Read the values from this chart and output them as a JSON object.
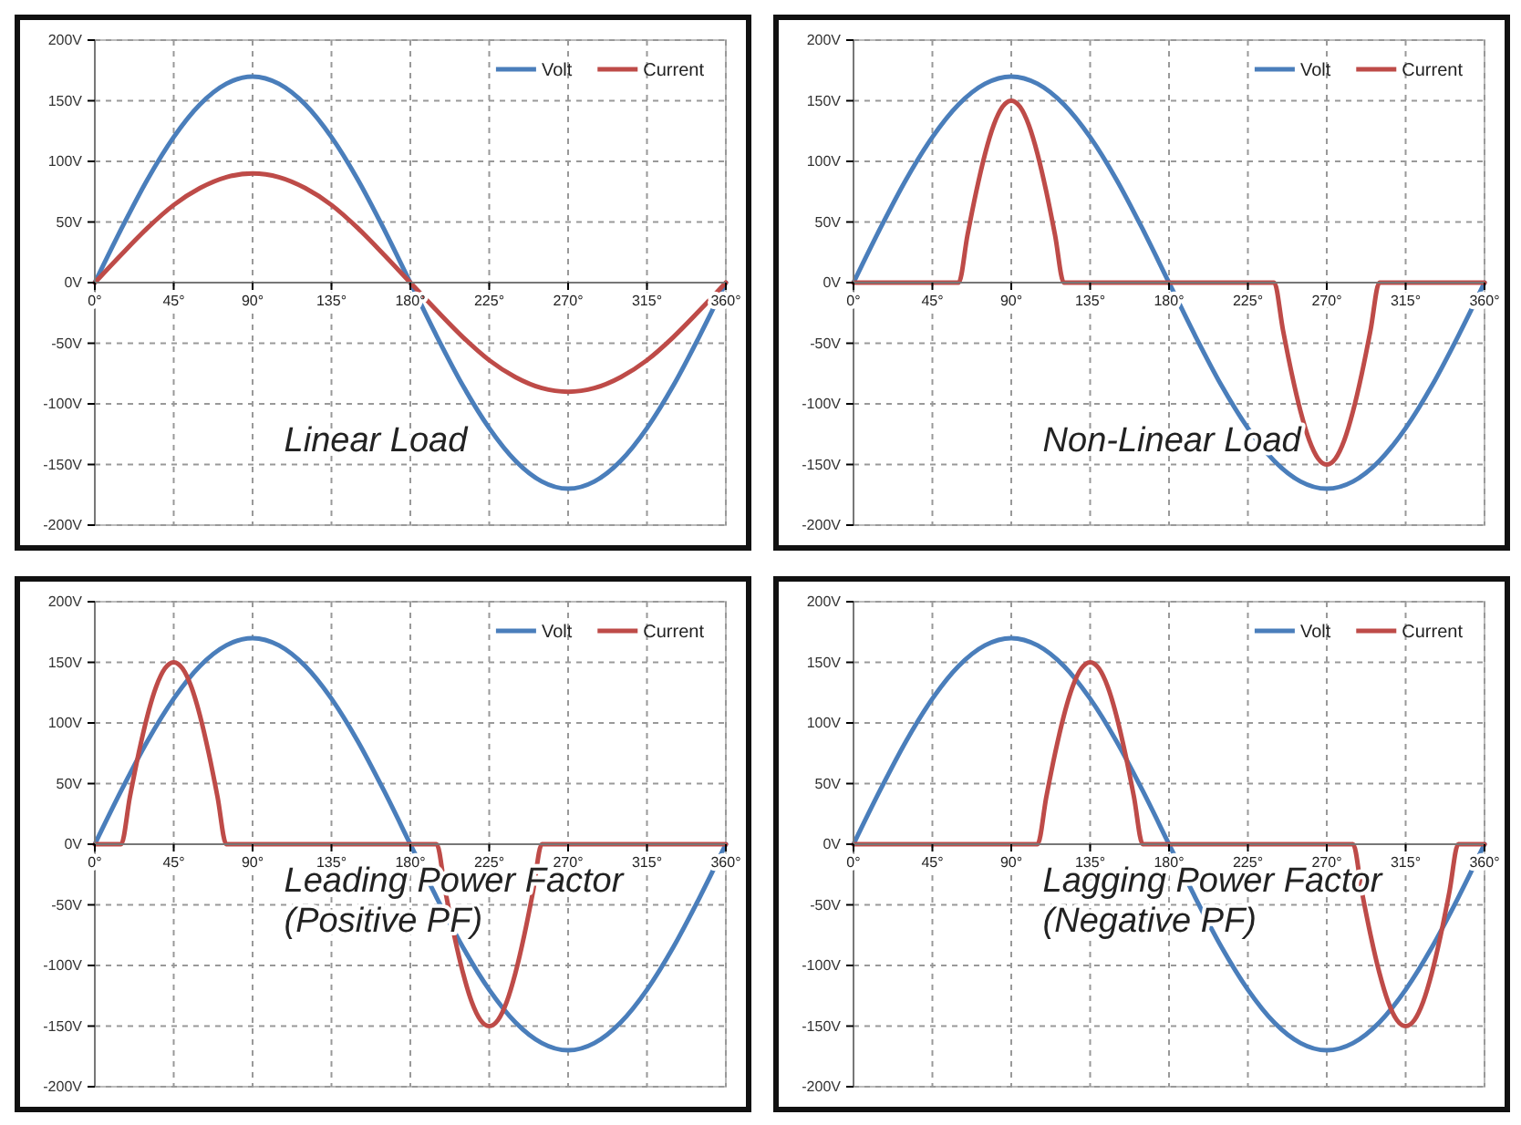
{
  "chart_data": [
    {
      "type": "line",
      "xlim": [
        0,
        360
      ],
      "ylim": [
        -200,
        200
      ],
      "xticks": [
        {
          "value": 0,
          "label": "0°"
        },
        {
          "value": 45,
          "label": "45°"
        },
        {
          "value": 90,
          "label": "90°"
        },
        {
          "value": 135,
          "label": "135°"
        },
        {
          "value": 180,
          "label": "180°"
        },
        {
          "value": 225,
          "label": "225°"
        },
        {
          "value": 270,
          "label": "270°"
        },
        {
          "value": 315,
          "label": "315°"
        },
        {
          "value": 360,
          "label": "360°"
        }
      ],
      "yticks": [
        {
          "value": 200,
          "label": "200V"
        },
        {
          "value": 150,
          "label": "150V"
        },
        {
          "value": 100,
          "label": "100V"
        },
        {
          "value": 50,
          "label": "50V"
        },
        {
          "value": 0,
          "label": "0V"
        },
        {
          "value": -50,
          "label": "-50V"
        },
        {
          "value": -100,
          "label": "-100V"
        },
        {
          "value": -150,
          "label": "-150V"
        },
        {
          "value": -200,
          "label": "-200V"
        }
      ],
      "grid": true,
      "legend": "top right",
      "line_style": "solid",
      "marker": "none",
      "annotations": [
        "Linear Load"
      ],
      "series": [
        {
          "name": "Volt",
          "color": "#4a7ebb",
          "x": [
            0,
            15,
            30,
            45,
            60,
            75,
            90,
            105,
            120,
            135,
            150,
            165,
            180,
            195,
            210,
            225,
            240,
            255,
            270,
            285,
            300,
            315,
            330,
            345,
            360
          ],
          "values": [
            0,
            44,
            85,
            120,
            147,
            164,
            170,
            164,
            147,
            120,
            85,
            44,
            0,
            -44,
            -85,
            -120,
            -147,
            -164,
            -170,
            -164,
            -147,
            -120,
            -85,
            -44,
            0
          ]
        },
        {
          "name": "Current",
          "color": "#be4b48",
          "x": [
            0,
            15,
            30,
            45,
            60,
            75,
            90,
            105,
            120,
            135,
            150,
            165,
            180,
            195,
            210,
            225,
            240,
            255,
            270,
            285,
            300,
            315,
            330,
            345,
            360
          ],
          "values": [
            0,
            23,
            45,
            64,
            78,
            87,
            90,
            87,
            78,
            64,
            45,
            23,
            0,
            -23,
            -45,
            -64,
            -78,
            -87,
            -90,
            -87,
            -78,
            -64,
            -45,
            -23,
            0
          ]
        }
      ]
    },
    {
      "type": "line",
      "xlim": [
        0,
        360
      ],
      "ylim": [
        -200,
        200
      ],
      "xticks": [
        {
          "value": 0,
          "label": "0°"
        },
        {
          "value": 45,
          "label": "45°"
        },
        {
          "value": 90,
          "label": "90°"
        },
        {
          "value": 135,
          "label": "135°"
        },
        {
          "value": 180,
          "label": "180°"
        },
        {
          "value": 225,
          "label": "225°"
        },
        {
          "value": 270,
          "label": "270°"
        },
        {
          "value": 315,
          "label": "315°"
        },
        {
          "value": 360,
          "label": "360°"
        }
      ],
      "yticks": [
        {
          "value": 200,
          "label": "200V"
        },
        {
          "value": 150,
          "label": "150V"
        },
        {
          "value": 100,
          "label": "100V"
        },
        {
          "value": 50,
          "label": "50V"
        },
        {
          "value": 0,
          "label": "0V"
        },
        {
          "value": -50,
          "label": "-50V"
        },
        {
          "value": -100,
          "label": "-100V"
        },
        {
          "value": -150,
          "label": "-150V"
        },
        {
          "value": -200,
          "label": "-200V"
        }
      ],
      "grid": true,
      "legend": "top right",
      "line_style": "solid",
      "marker": "none",
      "annotations": [
        "Non-Linear Load"
      ],
      "series": [
        {
          "name": "Volt",
          "color": "#4a7ebb",
          "x": [
            0,
            15,
            30,
            45,
            60,
            75,
            90,
            105,
            120,
            135,
            150,
            165,
            180,
            195,
            210,
            225,
            240,
            255,
            270,
            285,
            300,
            315,
            330,
            345,
            360
          ],
          "values": [
            0,
            44,
            85,
            120,
            147,
            164,
            170,
            164,
            147,
            120,
            85,
            44,
            0,
            -44,
            -85,
            -120,
            -147,
            -164,
            -170,
            -164,
            -147,
            -120,
            -85,
            -44,
            0
          ]
        },
        {
          "name": "Current",
          "color": "#be4b48",
          "x": [
            0,
            60,
            65,
            70,
            75,
            80,
            85,
            90,
            95,
            100,
            105,
            110,
            115,
            120,
            240,
            245,
            250,
            255,
            260,
            265,
            270,
            275,
            280,
            285,
            290,
            295,
            300,
            360
          ],
          "values": [
            0,
            0,
            39,
            75,
            106,
            130,
            145,
            150,
            145,
            130,
            106,
            75,
            39,
            0,
            0,
            -39,
            -75,
            -106,
            -130,
            -145,
            -150,
            -145,
            -130,
            -106,
            -75,
            -39,
            0,
            0
          ]
        }
      ]
    },
    {
      "type": "line",
      "xlim": [
        0,
        360
      ],
      "ylim": [
        -200,
        200
      ],
      "xticks": [
        {
          "value": 0,
          "label": "0°"
        },
        {
          "value": 45,
          "label": "45°"
        },
        {
          "value": 90,
          "label": "90°"
        },
        {
          "value": 135,
          "label": "135°"
        },
        {
          "value": 180,
          "label": "180°"
        },
        {
          "value": 225,
          "label": "225°"
        },
        {
          "value": 270,
          "label": "270°"
        },
        {
          "value": 315,
          "label": "315°"
        },
        {
          "value": 360,
          "label": "360°"
        }
      ],
      "yticks": [
        {
          "value": 200,
          "label": "200V"
        },
        {
          "value": 150,
          "label": "150V"
        },
        {
          "value": 100,
          "label": "100V"
        },
        {
          "value": 50,
          "label": "50V"
        },
        {
          "value": 0,
          "label": "0V"
        },
        {
          "value": -50,
          "label": "-50V"
        },
        {
          "value": -100,
          "label": "-100V"
        },
        {
          "value": -150,
          "label": "-150V"
        },
        {
          "value": -200,
          "label": "-200V"
        }
      ],
      "grid": true,
      "legend": "top right",
      "line_style": "solid",
      "marker": "none",
      "annotations": [
        "Leading Power Factor",
        "(Positive PF)"
      ],
      "series": [
        {
          "name": "Volt",
          "color": "#4a7ebb",
          "x": [
            0,
            15,
            30,
            45,
            60,
            75,
            90,
            105,
            120,
            135,
            150,
            165,
            180,
            195,
            210,
            225,
            240,
            255,
            270,
            285,
            300,
            315,
            330,
            345,
            360
          ],
          "values": [
            0,
            44,
            85,
            120,
            147,
            164,
            170,
            164,
            147,
            120,
            85,
            44,
            0,
            -44,
            -85,
            -120,
            -147,
            -164,
            -170,
            -164,
            -147,
            -120,
            -85,
            -44,
            0
          ]
        },
        {
          "name": "Current",
          "color": "#be4b48",
          "x": [
            0,
            15,
            20,
            25,
            30,
            35,
            40,
            45,
            50,
            55,
            60,
            65,
            70,
            75,
            195,
            200,
            205,
            210,
            215,
            220,
            225,
            230,
            235,
            240,
            245,
            250,
            255,
            360
          ],
          "values": [
            0,
            0,
            39,
            75,
            106,
            130,
            145,
            150,
            145,
            130,
            106,
            75,
            39,
            0,
            0,
            -39,
            -75,
            -106,
            -130,
            -145,
            -150,
            -145,
            -130,
            -106,
            -75,
            -39,
            0,
            0
          ]
        }
      ]
    },
    {
      "type": "line",
      "xlim": [
        0,
        360
      ],
      "ylim": [
        -200,
        200
      ],
      "xticks": [
        {
          "value": 0,
          "label": "0°"
        },
        {
          "value": 45,
          "label": "45°"
        },
        {
          "value": 90,
          "label": "90°"
        },
        {
          "value": 135,
          "label": "135°"
        },
        {
          "value": 180,
          "label": "180°"
        },
        {
          "value": 225,
          "label": "225°"
        },
        {
          "value": 270,
          "label": "270°"
        },
        {
          "value": 315,
          "label": "315°"
        },
        {
          "value": 360,
          "label": "360°"
        }
      ],
      "yticks": [
        {
          "value": 200,
          "label": "200V"
        },
        {
          "value": 150,
          "label": "150V"
        },
        {
          "value": 100,
          "label": "100V"
        },
        {
          "value": 50,
          "label": "50V"
        },
        {
          "value": 0,
          "label": "0V"
        },
        {
          "value": -50,
          "label": "-50V"
        },
        {
          "value": -100,
          "label": "-100V"
        },
        {
          "value": -150,
          "label": "-150V"
        },
        {
          "value": -200,
          "label": "-200V"
        }
      ],
      "grid": true,
      "legend": "top right",
      "line_style": "solid",
      "marker": "none",
      "annotations": [
        "Lagging Power Factor",
        "(Negative PF)"
      ],
      "series": [
        {
          "name": "Volt",
          "color": "#4a7ebb",
          "x": [
            0,
            15,
            30,
            45,
            60,
            75,
            90,
            105,
            120,
            135,
            150,
            165,
            180,
            195,
            210,
            225,
            240,
            255,
            270,
            285,
            300,
            315,
            330,
            345,
            360
          ],
          "values": [
            0,
            44,
            85,
            120,
            147,
            164,
            170,
            164,
            147,
            120,
            85,
            44,
            0,
            -44,
            -85,
            -120,
            -147,
            -164,
            -170,
            -164,
            -147,
            -120,
            -85,
            -44,
            0
          ]
        },
        {
          "name": "Current",
          "color": "#be4b48",
          "x": [
            0,
            105,
            110,
            115,
            120,
            125,
            130,
            135,
            140,
            145,
            150,
            155,
            160,
            165,
            285,
            290,
            295,
            300,
            305,
            310,
            315,
            320,
            325,
            330,
            335,
            340,
            345,
            360
          ],
          "values": [
            0,
            0,
            39,
            75,
            106,
            130,
            145,
            150,
            145,
            130,
            106,
            75,
            39,
            0,
            0,
            -39,
            -75,
            -106,
            -130,
            -145,
            -150,
            -145,
            -130,
            -106,
            -75,
            -39,
            0,
            0
          ]
        }
      ]
    }
  ]
}
